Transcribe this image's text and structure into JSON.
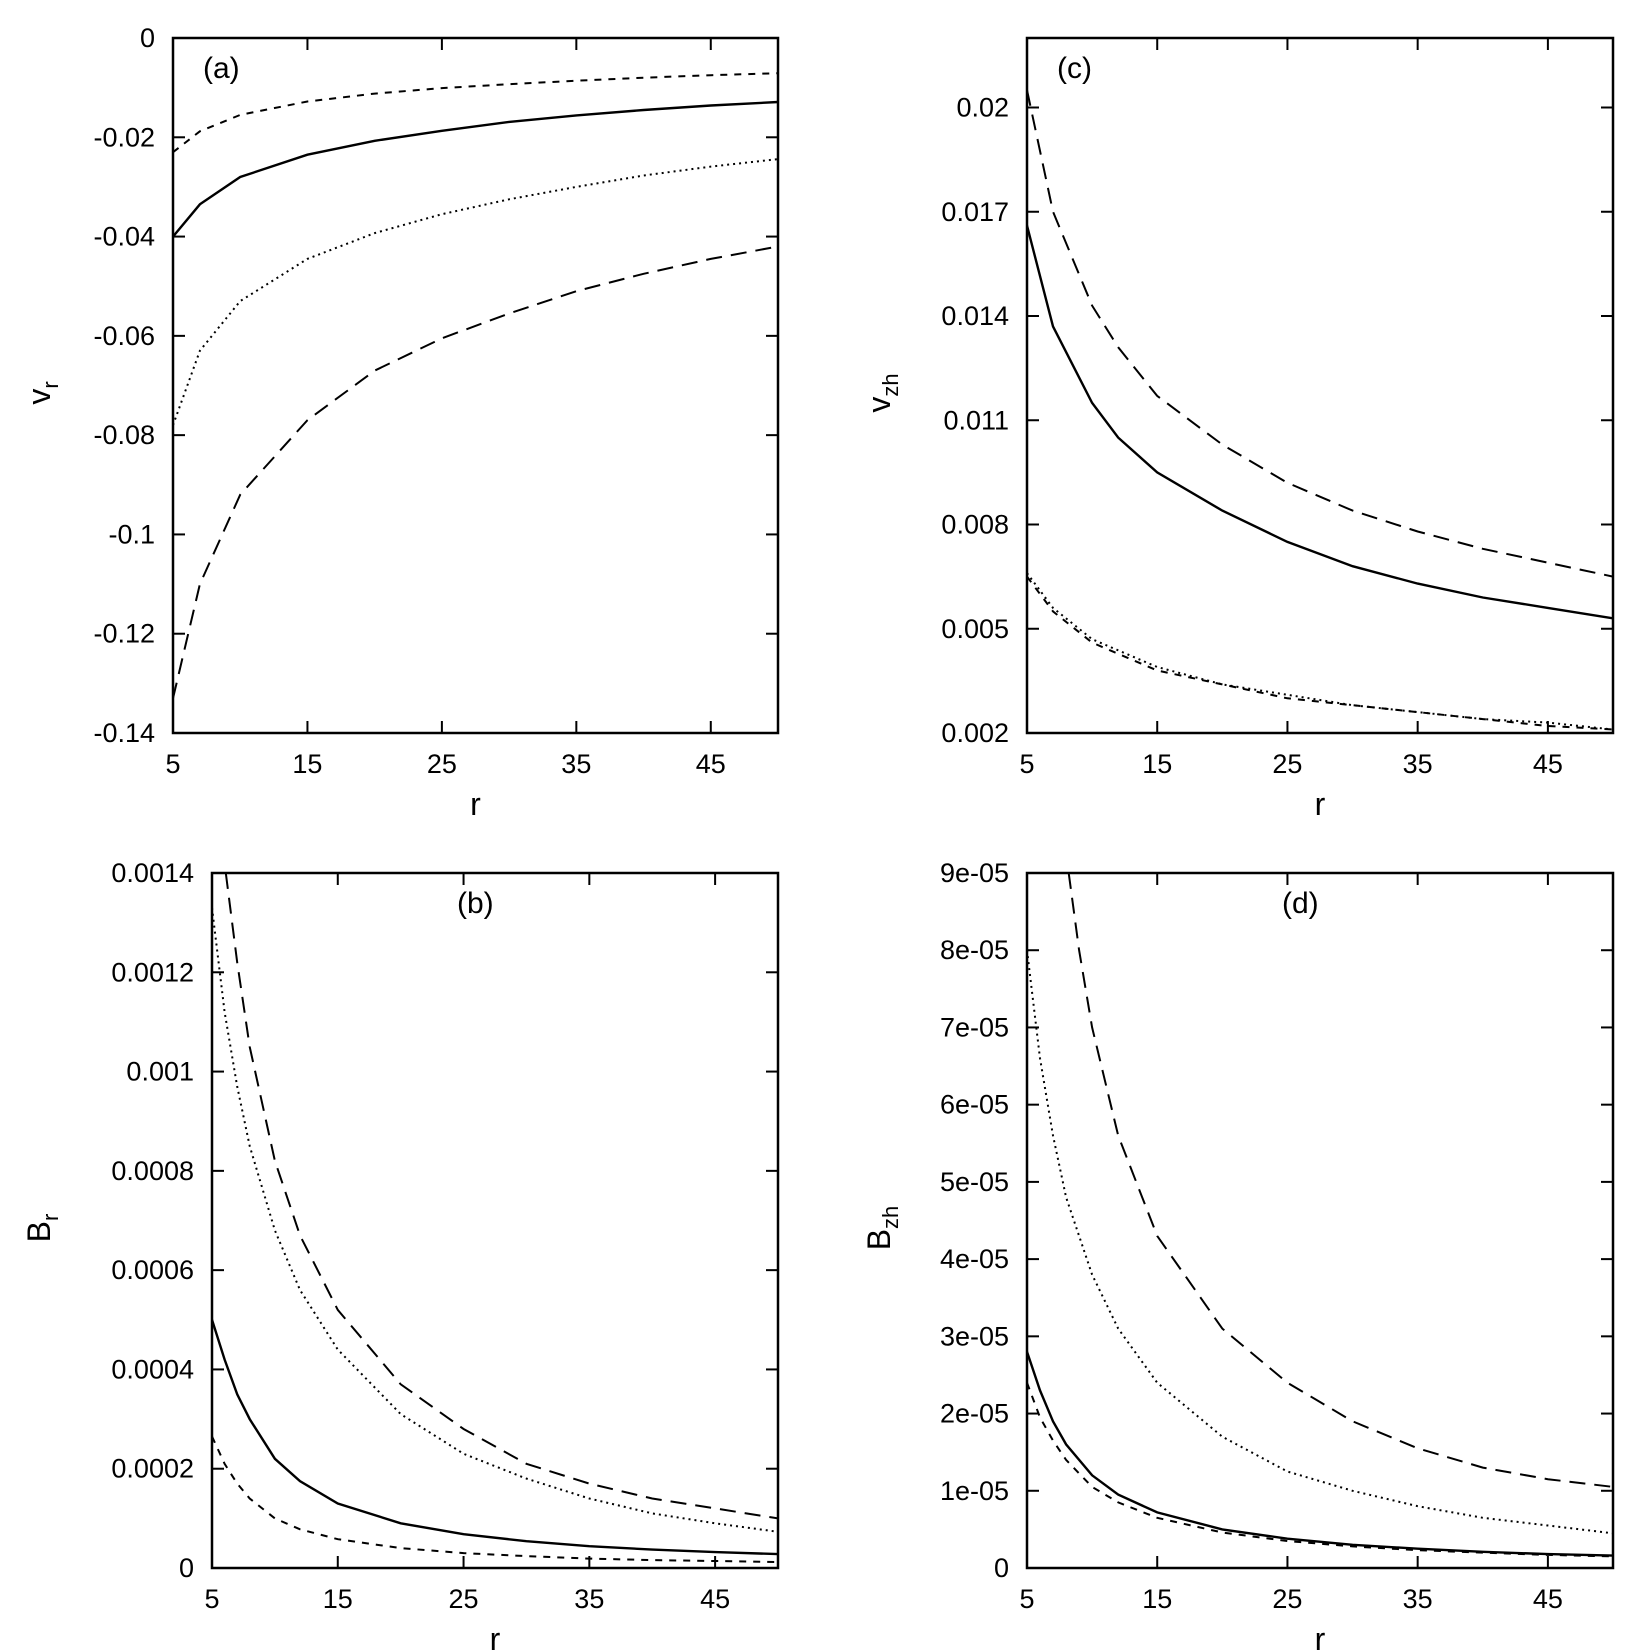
{
  "chart_data": [
    {
      "type": "line",
      "id": "a",
      "panel_label": "(a)",
      "xlabel": "r",
      "ylabel": "v",
      "ylabel_sub": "r",
      "xlim": [
        5,
        50
      ],
      "ylim": [
        -0.14,
        0
      ],
      "xticks": [
        5,
        15,
        25,
        35,
        45
      ],
      "xtick_labels": [
        "5",
        "15",
        "25",
        "35",
        "45"
      ],
      "yticks": [
        0,
        -0.02,
        -0.04,
        -0.06,
        -0.08,
        -0.1,
        -0.12,
        -0.14
      ],
      "ytick_labels": [
        "0",
        "-0.02",
        "-0.04",
        "-0.06",
        "-0.08",
        "-0.1",
        "-0.12",
        "-0.14"
      ],
      "series": [
        {
          "style": "solid",
          "x": [
            5,
            7,
            10,
            15,
            20,
            25,
            30,
            35,
            40,
            45,
            50
          ],
          "y": [
            -0.04,
            -0.0335,
            -0.028,
            -0.0235,
            -0.0207,
            -0.0187,
            -0.0169,
            -0.0156,
            -0.0145,
            -0.0136,
            -0.0129
          ]
        },
        {
          "style": "short-dash",
          "x": [
            5,
            7,
            10,
            15,
            20,
            25,
            30,
            35,
            40,
            45,
            50
          ],
          "y": [
            -0.023,
            -0.0188,
            -0.0155,
            -0.0128,
            -0.0112,
            -0.0101,
            -0.0093,
            -0.0086,
            -0.008,
            -0.0075,
            -0.0071
          ]
        },
        {
          "style": "dotted",
          "x": [
            5,
            7,
            10,
            15,
            20,
            25,
            30,
            35,
            40,
            45,
            50
          ],
          "y": [
            -0.078,
            -0.063,
            -0.053,
            -0.0445,
            -0.0393,
            -0.0355,
            -0.0325,
            -0.03,
            -0.0277,
            -0.0259,
            -0.0244
          ]
        },
        {
          "style": "long-dash",
          "x": [
            5,
            7,
            10,
            15,
            20,
            25,
            30,
            35,
            40,
            45,
            50
          ],
          "y": [
            -0.133,
            -0.11,
            -0.092,
            -0.077,
            -0.067,
            -0.0605,
            -0.0555,
            -0.051,
            -0.0475,
            -0.0445,
            -0.042
          ]
        }
      ]
    },
    {
      "type": "line",
      "id": "b",
      "panel_label": "(b)",
      "xlabel": "r",
      "ylabel": "B",
      "ylabel_sub": "r",
      "xlim": [
        5,
        50
      ],
      "ylim": [
        0,
        0.0014
      ],
      "xticks": [
        5,
        15,
        25,
        35,
        45
      ],
      "xtick_labels": [
        "5",
        "15",
        "25",
        "35",
        "45"
      ],
      "yticks": [
        0,
        0.0002,
        0.0004,
        0.0006,
        0.0008,
        0.001,
        0.0012,
        0.0014
      ],
      "ytick_labels": [
        "0",
        "0.0002",
        "0.0004",
        "0.0006",
        "0.0008",
        "0.001",
        "0.0012",
        "0.0014"
      ],
      "series": [
        {
          "style": "solid",
          "x": [
            5,
            6,
            7,
            8,
            10,
            12,
            15,
            20,
            25,
            30,
            35,
            40,
            45,
            50
          ],
          "y": [
            0.0005,
            0.00042,
            0.00035,
            0.0003,
            0.00022,
            0.000175,
            0.00013,
            9e-05,
            6.8e-05,
            5.4e-05,
            4.4e-05,
            3.7e-05,
            3.2e-05,
            2.8e-05
          ]
        },
        {
          "style": "short-dash",
          "x": [
            5,
            6,
            7,
            8,
            10,
            12,
            15,
            20,
            25,
            30,
            35,
            40,
            45,
            50
          ],
          "y": [
            0.000265,
            0.00021,
            0.00017,
            0.00014,
            0.0001,
            7.8e-05,
            5.8e-05,
            4e-05,
            3e-05,
            2.4e-05,
            1.9e-05,
            1.6e-05,
            1.4e-05,
            1.2e-05
          ]
        },
        {
          "style": "dotted",
          "x": [
            5,
            6,
            7,
            8,
            10,
            12,
            15,
            20,
            25,
            30,
            35,
            40,
            45,
            50
          ],
          "y": [
            0.00133,
            0.00112,
            0.00097,
            0.00085,
            0.00068,
            0.00056,
            0.00044,
            0.00031,
            0.00023,
            0.00018,
            0.00014,
            0.00011,
            9e-05,
            7.3e-05
          ]
        },
        {
          "style": "long-dash",
          "x": [
            6.1,
            7,
            8,
            10,
            12,
            15,
            20,
            25,
            30,
            35,
            40,
            45,
            50
          ],
          "y": [
            0.0014,
            0.00122,
            0.00105,
            0.00082,
            0.00067,
            0.00052,
            0.00037,
            0.00028,
            0.00021,
            0.00017,
            0.00014,
            0.00012,
            0.0001
          ]
        }
      ]
    },
    {
      "type": "line",
      "id": "c",
      "panel_label": "(c)",
      "xlabel": "r",
      "ylabel": "v",
      "ylabel_sub": "zh",
      "xlim": [
        5,
        50
      ],
      "ylim": [
        0.002,
        0.022
      ],
      "xticks": [
        5,
        15,
        25,
        35,
        45
      ],
      "xtick_labels": [
        "5",
        "15",
        "25",
        "35",
        "45"
      ],
      "yticks": [
        0.002,
        0.005,
        0.008,
        0.011,
        0.014,
        0.017,
        0.02
      ],
      "ytick_labels": [
        "0.002",
        "0.005",
        "0.008",
        "0.011",
        "0.014",
        "0.017",
        "0.02"
      ],
      "series": [
        {
          "style": "solid",
          "x": [
            5,
            7,
            10,
            12,
            15,
            20,
            25,
            30,
            35,
            40,
            45,
            50
          ],
          "y": [
            0.0166,
            0.0137,
            0.0115,
            0.0105,
            0.0095,
            0.0084,
            0.0075,
            0.0068,
            0.0063,
            0.0059,
            0.0056,
            0.0053
          ]
        },
        {
          "style": "long-dash",
          "x": [
            5,
            7,
            10,
            12,
            15,
            20,
            25,
            30,
            35,
            40,
            45,
            50
          ],
          "y": [
            0.0205,
            0.017,
            0.0143,
            0.0131,
            0.0117,
            0.0103,
            0.0092,
            0.0084,
            0.0078,
            0.0073,
            0.0069,
            0.0065
          ]
        },
        {
          "style": "short-dash",
          "x": [
            5,
            7,
            10,
            15,
            20,
            25,
            30,
            35,
            40,
            45,
            50
          ],
          "y": [
            0.0065,
            0.0055,
            0.0046,
            0.0038,
            0.0034,
            0.003,
            0.0028,
            0.0026,
            0.0024,
            0.0022,
            0.0021
          ]
        },
        {
          "style": "dotted",
          "x": [
            5,
            7,
            10,
            15,
            20,
            25,
            30,
            35,
            40,
            45,
            50
          ],
          "y": [
            0.0066,
            0.0056,
            0.0047,
            0.0039,
            0.0034,
            0.0031,
            0.0028,
            0.0026,
            0.0024,
            0.0023,
            0.0021
          ]
        }
      ]
    },
    {
      "type": "line",
      "id": "d",
      "panel_label": "(d)",
      "xlabel": "r",
      "ylabel": "B",
      "ylabel_sub": "zh",
      "xlim": [
        5,
        50
      ],
      "ylim": [
        0,
        9e-05
      ],
      "xticks": [
        5,
        15,
        25,
        35,
        45
      ],
      "xtick_labels": [
        "5",
        "15",
        "25",
        "35",
        "45"
      ],
      "yticks": [
        0,
        1e-05,
        2e-05,
        3e-05,
        4e-05,
        5e-05,
        6e-05,
        7e-05,
        8e-05,
        9e-05
      ],
      "ytick_labels": [
        "0",
        "1e-05",
        "2e-05",
        "3e-05",
        "4e-05",
        "5e-05",
        "6e-05",
        "7e-05",
        "8e-05",
        "9e-05"
      ],
      "series": [
        {
          "style": "solid",
          "x": [
            5,
            6,
            7,
            8,
            10,
            12,
            15,
            20,
            25,
            30,
            35,
            40,
            45,
            50
          ],
          "y": [
            2.8e-05,
            2.3e-05,
            1.9e-05,
            1.6e-05,
            1.2e-05,
            9.5e-06,
            7.2e-06,
            5e-06,
            3.8e-06,
            3e-06,
            2.5e-06,
            2.1e-06,
            1.8e-06,
            1.6e-06
          ]
        },
        {
          "style": "short-dash",
          "x": [
            5,
            6,
            7,
            8,
            10,
            12,
            15,
            20,
            25,
            30,
            35,
            40,
            45,
            50
          ],
          "y": [
            2.4e-05,
            1.95e-05,
            1.65e-05,
            1.4e-05,
            1.05e-05,
            8.5e-06,
            6.5e-06,
            4.6e-06,
            3.5e-06,
            2.8e-06,
            2.3e-06,
            2e-06,
            1.7e-06,
            1.5e-06
          ]
        },
        {
          "style": "dotted",
          "x": [
            5,
            6,
            7,
            8,
            10,
            12,
            15,
            20,
            25,
            30,
            35,
            40,
            45,
            50
          ],
          "y": [
            8e-05,
            6.6e-05,
            5.6e-05,
            4.8e-05,
            3.8e-05,
            3.1e-05,
            2.4e-05,
            1.7e-05,
            1.25e-05,
            1e-05,
            8e-06,
            6.5e-06,
            5.5e-06,
            4.5e-06
          ]
        },
        {
          "style": "long-dash",
          "x": [
            8.2,
            9,
            10,
            12,
            15,
            20,
            25,
            30,
            35,
            40,
            45,
            50
          ],
          "y": [
            9e-05,
            8e-05,
            7e-05,
            5.6e-05,
            4.3e-05,
            3.1e-05,
            2.4e-05,
            1.9e-05,
            1.55e-05,
            1.3e-05,
            1.15e-05,
            1.05e-05
          ]
        }
      ]
    }
  ]
}
